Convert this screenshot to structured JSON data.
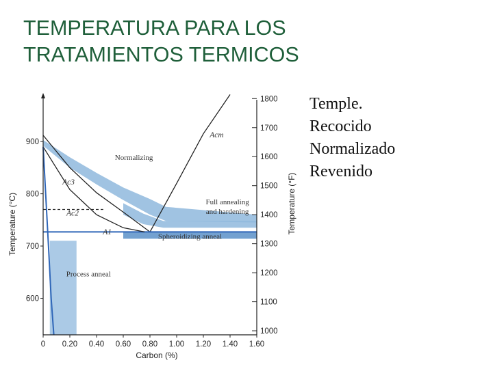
{
  "title": {
    "line1": "TEMPERATURA PARA LOS",
    "line2": "TRATAMIENTOS TERMICOS"
  },
  "bullets": [
    "Temple.",
    "Recocido",
    "Normalizado",
    "Revenido"
  ],
  "colors": {
    "title": "#1f5f3a",
    "band": "#8fb8dd",
    "band_dark": "#5b90c8",
    "line_blue": "#2f66b8",
    "line_dark": "#222222"
  },
  "chart_data": {
    "type": "area",
    "xlabel": "Carbon (%)",
    "ylabel": "Temperature (°C)",
    "ylabel_right": "Temperature (°F)",
    "xlim": [
      0,
      1.6
    ],
    "ylim": [
      530,
      980
    ],
    "ylim_right_f": [
      986,
      1796
    ],
    "x_ticks": [
      0,
      0.2,
      0.4,
      0.6,
      0.8,
      1.0,
      1.2,
      1.4,
      1.6
    ],
    "x_tick_labels": [
      "0",
      "0.20",
      "0.40",
      "0.60",
      "0.80",
      "1.00",
      "1.20",
      "1.40",
      "1.60"
    ],
    "y_ticks": [
      600,
      700,
      800,
      900
    ],
    "y_tick_labels": [
      "600",
      "700",
      "800",
      "900"
    ],
    "y_right_ticks_f": [
      1000,
      1100,
      1200,
      1300,
      1400,
      1500,
      1600,
      1700,
      1800
    ],
    "y_right_tick_labels": [
      "1000",
      "1100",
      "1200",
      "1300",
      "1400",
      "1500",
      "1600",
      "1700",
      "1800"
    ],
    "lines": [
      {
        "name": "Ac3",
        "label": "Ac3",
        "points": [
          [
            0,
            912
          ],
          [
            0.2,
            850
          ],
          [
            0.4,
            802
          ],
          [
            0.6,
            765
          ],
          [
            0.8,
            727
          ]
        ]
      },
      {
        "name": "Acm",
        "label": "Acm",
        "points": [
          [
            0.8,
            727
          ],
          [
            1.0,
            820
          ],
          [
            1.2,
            915
          ],
          [
            1.4,
            990
          ]
        ]
      },
      {
        "name": "A1",
        "label": "A1",
        "points": [
          [
            0,
            727
          ],
          [
            1.6,
            727
          ]
        ]
      },
      {
        "name": "Ac2",
        "label": "Ac2",
        "points": [
          [
            0,
            770
          ],
          [
            0.45,
            770
          ]
        ]
      },
      {
        "name": "A3-curve",
        "label": "",
        "points": [
          [
            0,
            890
          ],
          [
            0.2,
            808
          ],
          [
            0.4,
            760
          ],
          [
            0.6,
            735
          ],
          [
            0.76,
            727
          ]
        ]
      },
      {
        "name": "quench",
        "label": "",
        "points": [
          [
            0,
            890
          ],
          [
            0.04,
            700
          ],
          [
            0.06,
            600
          ],
          [
            0.08,
            530
          ]
        ]
      }
    ],
    "regions": [
      {
        "name": "Normalizing",
        "label": "Normalizing",
        "upper": [
          [
            0,
            903
          ],
          [
            0.2,
            870
          ],
          [
            0.4,
            840
          ],
          [
            0.6,
            812
          ],
          [
            0.8,
            790
          ],
          [
            0.92,
            775
          ],
          [
            1.6,
            760
          ]
        ],
        "lower": [
          [
            1.6,
            745
          ],
          [
            0.92,
            748
          ],
          [
            0.8,
            760
          ],
          [
            0.6,
            788
          ],
          [
            0.4,
            818
          ],
          [
            0.2,
            850
          ],
          [
            0,
            892
          ]
        ]
      },
      {
        "name": "Full annealing and hardening",
        "label": "Full annealing\nand hardening",
        "upper": [
          [
            0.6,
            782
          ],
          [
            0.75,
            762
          ],
          [
            0.9,
            748
          ],
          [
            1.6,
            748
          ]
        ],
        "lower": [
          [
            1.6,
            735
          ],
          [
            0.9,
            735
          ],
          [
            0.75,
            742
          ],
          [
            0.6,
            760
          ]
        ]
      },
      {
        "name": "Spheroidizing anneal",
        "label": "Spheroidizing anneal",
        "upper": [
          [
            0.6,
            727
          ],
          [
            1.6,
            727
          ]
        ],
        "lower": [
          [
            1.6,
            714
          ],
          [
            0.6,
            714
          ]
        ]
      },
      {
        "name": "Process anneal",
        "label": "Process anneal",
        "upper": [
          [
            0.05,
            710
          ],
          [
            0.25,
            710
          ]
        ],
        "lower": [
          [
            0.25,
            530
          ],
          [
            0.05,
            530
          ]
        ]
      }
    ],
    "grid": false,
    "legend": "none"
  }
}
